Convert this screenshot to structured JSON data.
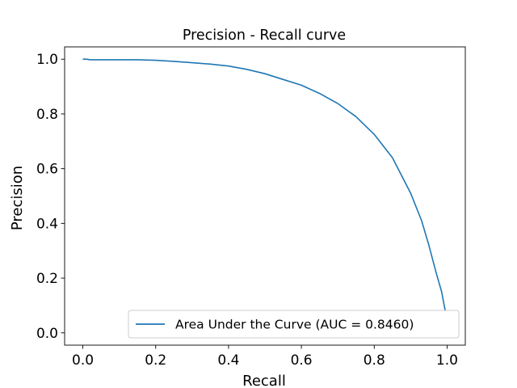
{
  "chart_data": {
    "type": "line",
    "title": "Precision - Recall curve",
    "xlabel": "Recall",
    "ylabel": "Precision",
    "xlim": [
      -0.05,
      1.05
    ],
    "ylim": [
      -0.045,
      1.045
    ],
    "xticks": [
      0.0,
      0.2,
      0.4,
      0.6,
      0.8,
      1.0
    ],
    "xtick_labels": [
      "0.0",
      "0.2",
      "0.4",
      "0.6",
      "0.8",
      "1.0"
    ],
    "yticks": [
      0.0,
      0.2,
      0.4,
      0.6,
      0.8,
      1.0
    ],
    "ytick_labels": [
      "0.0",
      "0.2",
      "0.4",
      "0.6",
      "0.8",
      "1.0"
    ],
    "grid": false,
    "legend_position": "bottom-right",
    "series": [
      {
        "name": "Area Under the Curve (AUC = 0.8460)",
        "color": "#1f77b4",
        "x": [
          0.0,
          0.01,
          0.02,
          0.05,
          0.1,
          0.15,
          0.2,
          0.25,
          0.3,
          0.35,
          0.4,
          0.45,
          0.5,
          0.55,
          0.6,
          0.65,
          0.7,
          0.75,
          0.8,
          0.85,
          0.9,
          0.93,
          0.95,
          0.97,
          0.985,
          0.995
        ],
        "y": [
          1.0,
          1.0,
          0.998,
          0.998,
          0.998,
          0.998,
          0.996,
          0.992,
          0.987,
          0.982,
          0.975,
          0.963,
          0.947,
          0.926,
          0.905,
          0.875,
          0.838,
          0.79,
          0.725,
          0.64,
          0.51,
          0.41,
          0.32,
          0.22,
          0.15,
          0.08
        ]
      }
    ]
  }
}
